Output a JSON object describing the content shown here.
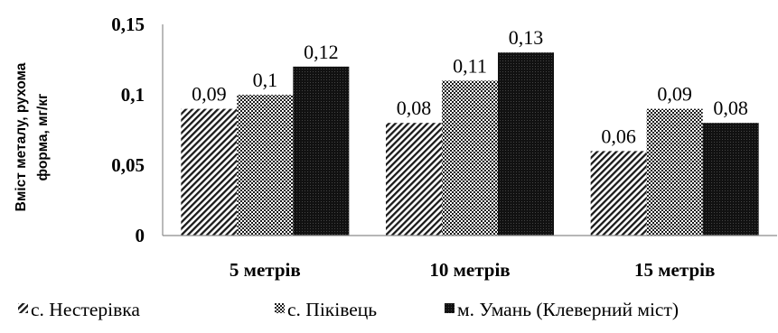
{
  "chart_data": {
    "type": "bar",
    "ylabel_lines": [
      "Вміст металу, рухома",
      "форма, мг/кг"
    ],
    "categories": [
      "5 метрів",
      "10 метрів",
      "15 метрів"
    ],
    "series": [
      {
        "name": "с. Нестерівка",
        "pattern": "diagonal-hatch",
        "values": [
          0.09,
          0.08,
          0.06
        ],
        "labels": [
          "0,09",
          "0,08",
          "0,06"
        ]
      },
      {
        "name": "с. Піківець",
        "pattern": "checker",
        "values": [
          0.1,
          0.11,
          0.09
        ],
        "labels": [
          "0,1",
          "0,11",
          "0,09"
        ]
      },
      {
        "name": "м. Умань (Клеверний міст)",
        "pattern": "solid-dark",
        "values": [
          0.12,
          0.13,
          0.08
        ],
        "labels": [
          "0,12",
          "0,13",
          "0,08"
        ]
      }
    ],
    "yticks": [
      0,
      0.05,
      0.1,
      0.15
    ],
    "ytick_labels": [
      "0",
      "0,05",
      "0,1",
      "0,15"
    ],
    "ylim": [
      0,
      0.15
    ],
    "grid": false,
    "legend_position": "bottom",
    "colors": {
      "dark": "#111111",
      "axis": "#8c8c8c",
      "background": "#ffffff"
    }
  }
}
